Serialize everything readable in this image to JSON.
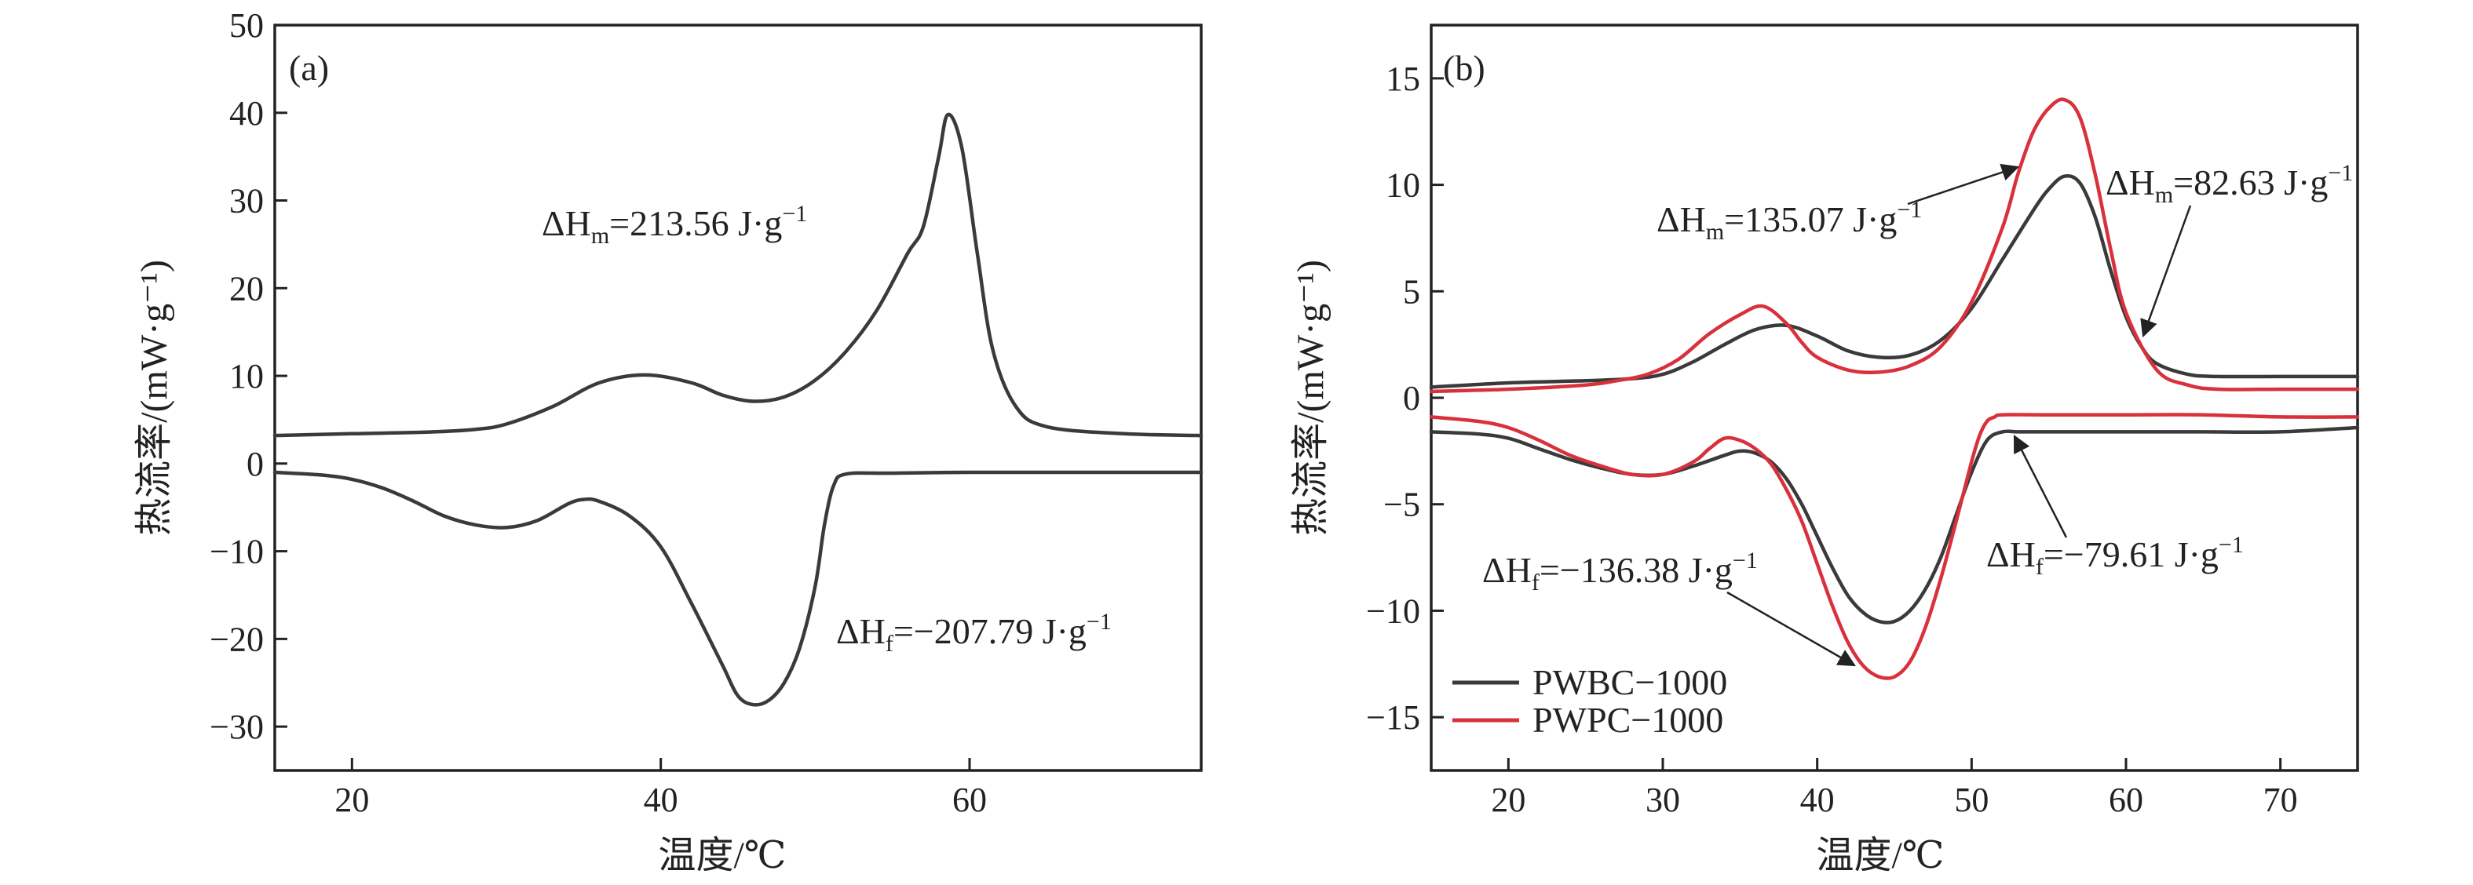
{
  "chart_data": [
    {
      "type": "line",
      "panel_label": "(a)",
      "xlabel": "温度/℃",
      "ylabel": "热流率/(mW·g⁻¹)",
      "xlim": [
        15,
        75
      ],
      "ylim": [
        -35,
        50
      ],
      "xticks": [
        20,
        40,
        60
      ],
      "yticks": [
        -30,
        -20,
        -10,
        0,
        10,
        20,
        30,
        40,
        50
      ],
      "grid": false,
      "series": [
        {
          "color": "#3a3a3a",
          "x": [
            15,
            20,
            25,
            28,
            30,
            33,
            36,
            39,
            42,
            44,
            46,
            48,
            50,
            52,
            54,
            56,
            57,
            58,
            58.6,
            59.5,
            60.5,
            61.5,
            63,
            65,
            70,
            75
          ],
          "y": [
            3.2,
            3.4,
            3.6,
            3.9,
            4.5,
            6.5,
            9.2,
            10.1,
            9.2,
            7.8,
            7.1,
            7.6,
            9.5,
            12.8,
            17.5,
            24,
            27,
            35,
            39.8,
            36,
            24,
            13,
            6.5,
            4.2,
            3.4,
            3.2
          ]
        },
        {
          "color": "#3a3a3a",
          "x": [
            15,
            18,
            20,
            22,
            24,
            26,
            28,
            30,
            32,
            34,
            35,
            36,
            38,
            40,
            42,
            44,
            45,
            46,
            47,
            48,
            49,
            50,
            50.6,
            51.2,
            52,
            55,
            60,
            65,
            70,
            75
          ],
          "y": [
            -1,
            -1.3,
            -1.8,
            -2.8,
            -4.3,
            -6,
            -7,
            -7.3,
            -6.5,
            -4.6,
            -4.1,
            -4.3,
            -6,
            -9.5,
            -16,
            -23,
            -26.5,
            -27.5,
            -27,
            -25,
            -21,
            -14,
            -7,
            -2.5,
            -1.2,
            -1.1,
            -1,
            -1,
            -1,
            -1
          ]
        }
      ],
      "annotations": [
        {
          "text": "ΔHm=213.56 J·g⁻¹",
          "symbol": "ΔH",
          "sub": "m",
          "value": "=213.56 J·g",
          "sup": "−1"
        },
        {
          "text": "ΔHf=−207.79 J·g⁻¹",
          "symbol": "ΔH",
          "sub": "f",
          "value": "=−207.79 J·g",
          "sup": "−1"
        }
      ]
    },
    {
      "type": "line",
      "panel_label": "(b)",
      "xlabel": "温度/℃",
      "ylabel": "热流率/(mW·g⁻¹)",
      "xlim": [
        15,
        75
      ],
      "ylim": [
        -17.5,
        17.5
      ],
      "xticks": [
        20,
        30,
        40,
        50,
        60,
        70
      ],
      "yticks": [
        -15,
        -10,
        -5,
        0,
        5,
        10,
        15
      ],
      "grid": false,
      "legend_position": "bottom-left",
      "series": [
        {
          "name": "PWBC−1000",
          "color": "#3a3a3a",
          "x": [
            15,
            20,
            25,
            28,
            30,
            32,
            34,
            36,
            38,
            40,
            42,
            44,
            46,
            48,
            50,
            52,
            54,
            55,
            56,
            57,
            58,
            59,
            60,
            61,
            62,
            64,
            66,
            70,
            75
          ],
          "y": [
            0.5,
            0.7,
            0.8,
            0.9,
            1.1,
            1.7,
            2.5,
            3.2,
            3.4,
            2.9,
            2.2,
            1.9,
            2,
            2.7,
            4.2,
            6.5,
            8.8,
            9.8,
            10.4,
            10.1,
            8.5,
            6,
            3.8,
            2.4,
            1.6,
            1.1,
            1,
            1,
            1
          ]
        },
        {
          "name": "PWPC−1000",
          "color": "#d9313c",
          "x": [
            15,
            20,
            25,
            27,
            29,
            31,
            33,
            35,
            36.5,
            38,
            39,
            40,
            42,
            44,
            46,
            48,
            50,
            52,
            53,
            54,
            55,
            56,
            57,
            58,
            59,
            60,
            62,
            64,
            66,
            70,
            75
          ],
          "y": [
            0.3,
            0.4,
            0.6,
            0.8,
            1.1,
            1.8,
            3,
            3.9,
            4.3,
            3.5,
            2.6,
            1.9,
            1.3,
            1.2,
            1.5,
            2.4,
            4.5,
            8,
            10.5,
            12.5,
            13.6,
            14,
            13.2,
            10.5,
            7,
            4,
            1.3,
            0.6,
            0.4,
            0.4,
            0.4
          ]
        },
        {
          "name": "PWBC−1000",
          "color": "#3a3a3a",
          "x": [
            15,
            18,
            20,
            22,
            24,
            26,
            28,
            30,
            32,
            34,
            35,
            36,
            37,
            38,
            39,
            40,
            41,
            42,
            43,
            44,
            45,
            46,
            47,
            48,
            49,
            50,
            51,
            52,
            53,
            55,
            60,
            65,
            70,
            75
          ],
          "y": [
            -1.6,
            -1.7,
            -1.9,
            -2.4,
            -2.9,
            -3.3,
            -3.6,
            -3.6,
            -3.2,
            -2.7,
            -2.5,
            -2.6,
            -3,
            -3.8,
            -5,
            -6.5,
            -8,
            -9.3,
            -10.1,
            -10.5,
            -10.5,
            -10,
            -9,
            -7.5,
            -5.5,
            -3.5,
            -2,
            -1.6,
            -1.6,
            -1.6,
            -1.6,
            -1.6,
            -1.6,
            -1.4
          ]
        },
        {
          "name": "PWPC−1000",
          "color": "#d9313c",
          "x": [
            15,
            18,
            20,
            22,
            24,
            26,
            28,
            30,
            32,
            33,
            34,
            35,
            36,
            37,
            38,
            39,
            40,
            41,
            42,
            43,
            44,
            45,
            46,
            47,
            48,
            49,
            50,
            50.5,
            51,
            51.5,
            52,
            55,
            60,
            65,
            70,
            75
          ],
          "y": [
            -0.9,
            -1.1,
            -1.4,
            -2,
            -2.7,
            -3.2,
            -3.6,
            -3.6,
            -3,
            -2.4,
            -1.9,
            -2,
            -2.4,
            -3.1,
            -4.3,
            -5.8,
            -7.8,
            -9.8,
            -11.5,
            -12.6,
            -13.1,
            -13.1,
            -12.4,
            -10.8,
            -8.5,
            -5.8,
            -3,
            -1.8,
            -1.1,
            -0.9,
            -0.8,
            -0.8,
            -0.8,
            -0.8,
            -0.9,
            -0.9
          ]
        }
      ],
      "annotations": [
        {
          "text": "ΔHm=135.07 J·g⁻¹",
          "symbol": "ΔH",
          "sub": "m",
          "value": "=135.07 J·g",
          "sup": "−1"
        },
        {
          "text": "ΔHm=82.63 J·g⁻¹",
          "symbol": "ΔH",
          "sub": "m",
          "value": "=82.63 J·g",
          "sup": "−1"
        },
        {
          "text": "ΔHf=−136.38 J·g⁻¹",
          "symbol": "ΔH",
          "sub": "f",
          "value": "=−136.38 J·g",
          "sup": "−1"
        },
        {
          "text": "ΔHf=−79.61 J·g⁻¹",
          "symbol": "ΔH",
          "sub": "f",
          "value": "=−79.61 J·g",
          "sup": "−1"
        }
      ],
      "legend": [
        "PWBC−1000",
        "PWPC−1000"
      ]
    }
  ]
}
